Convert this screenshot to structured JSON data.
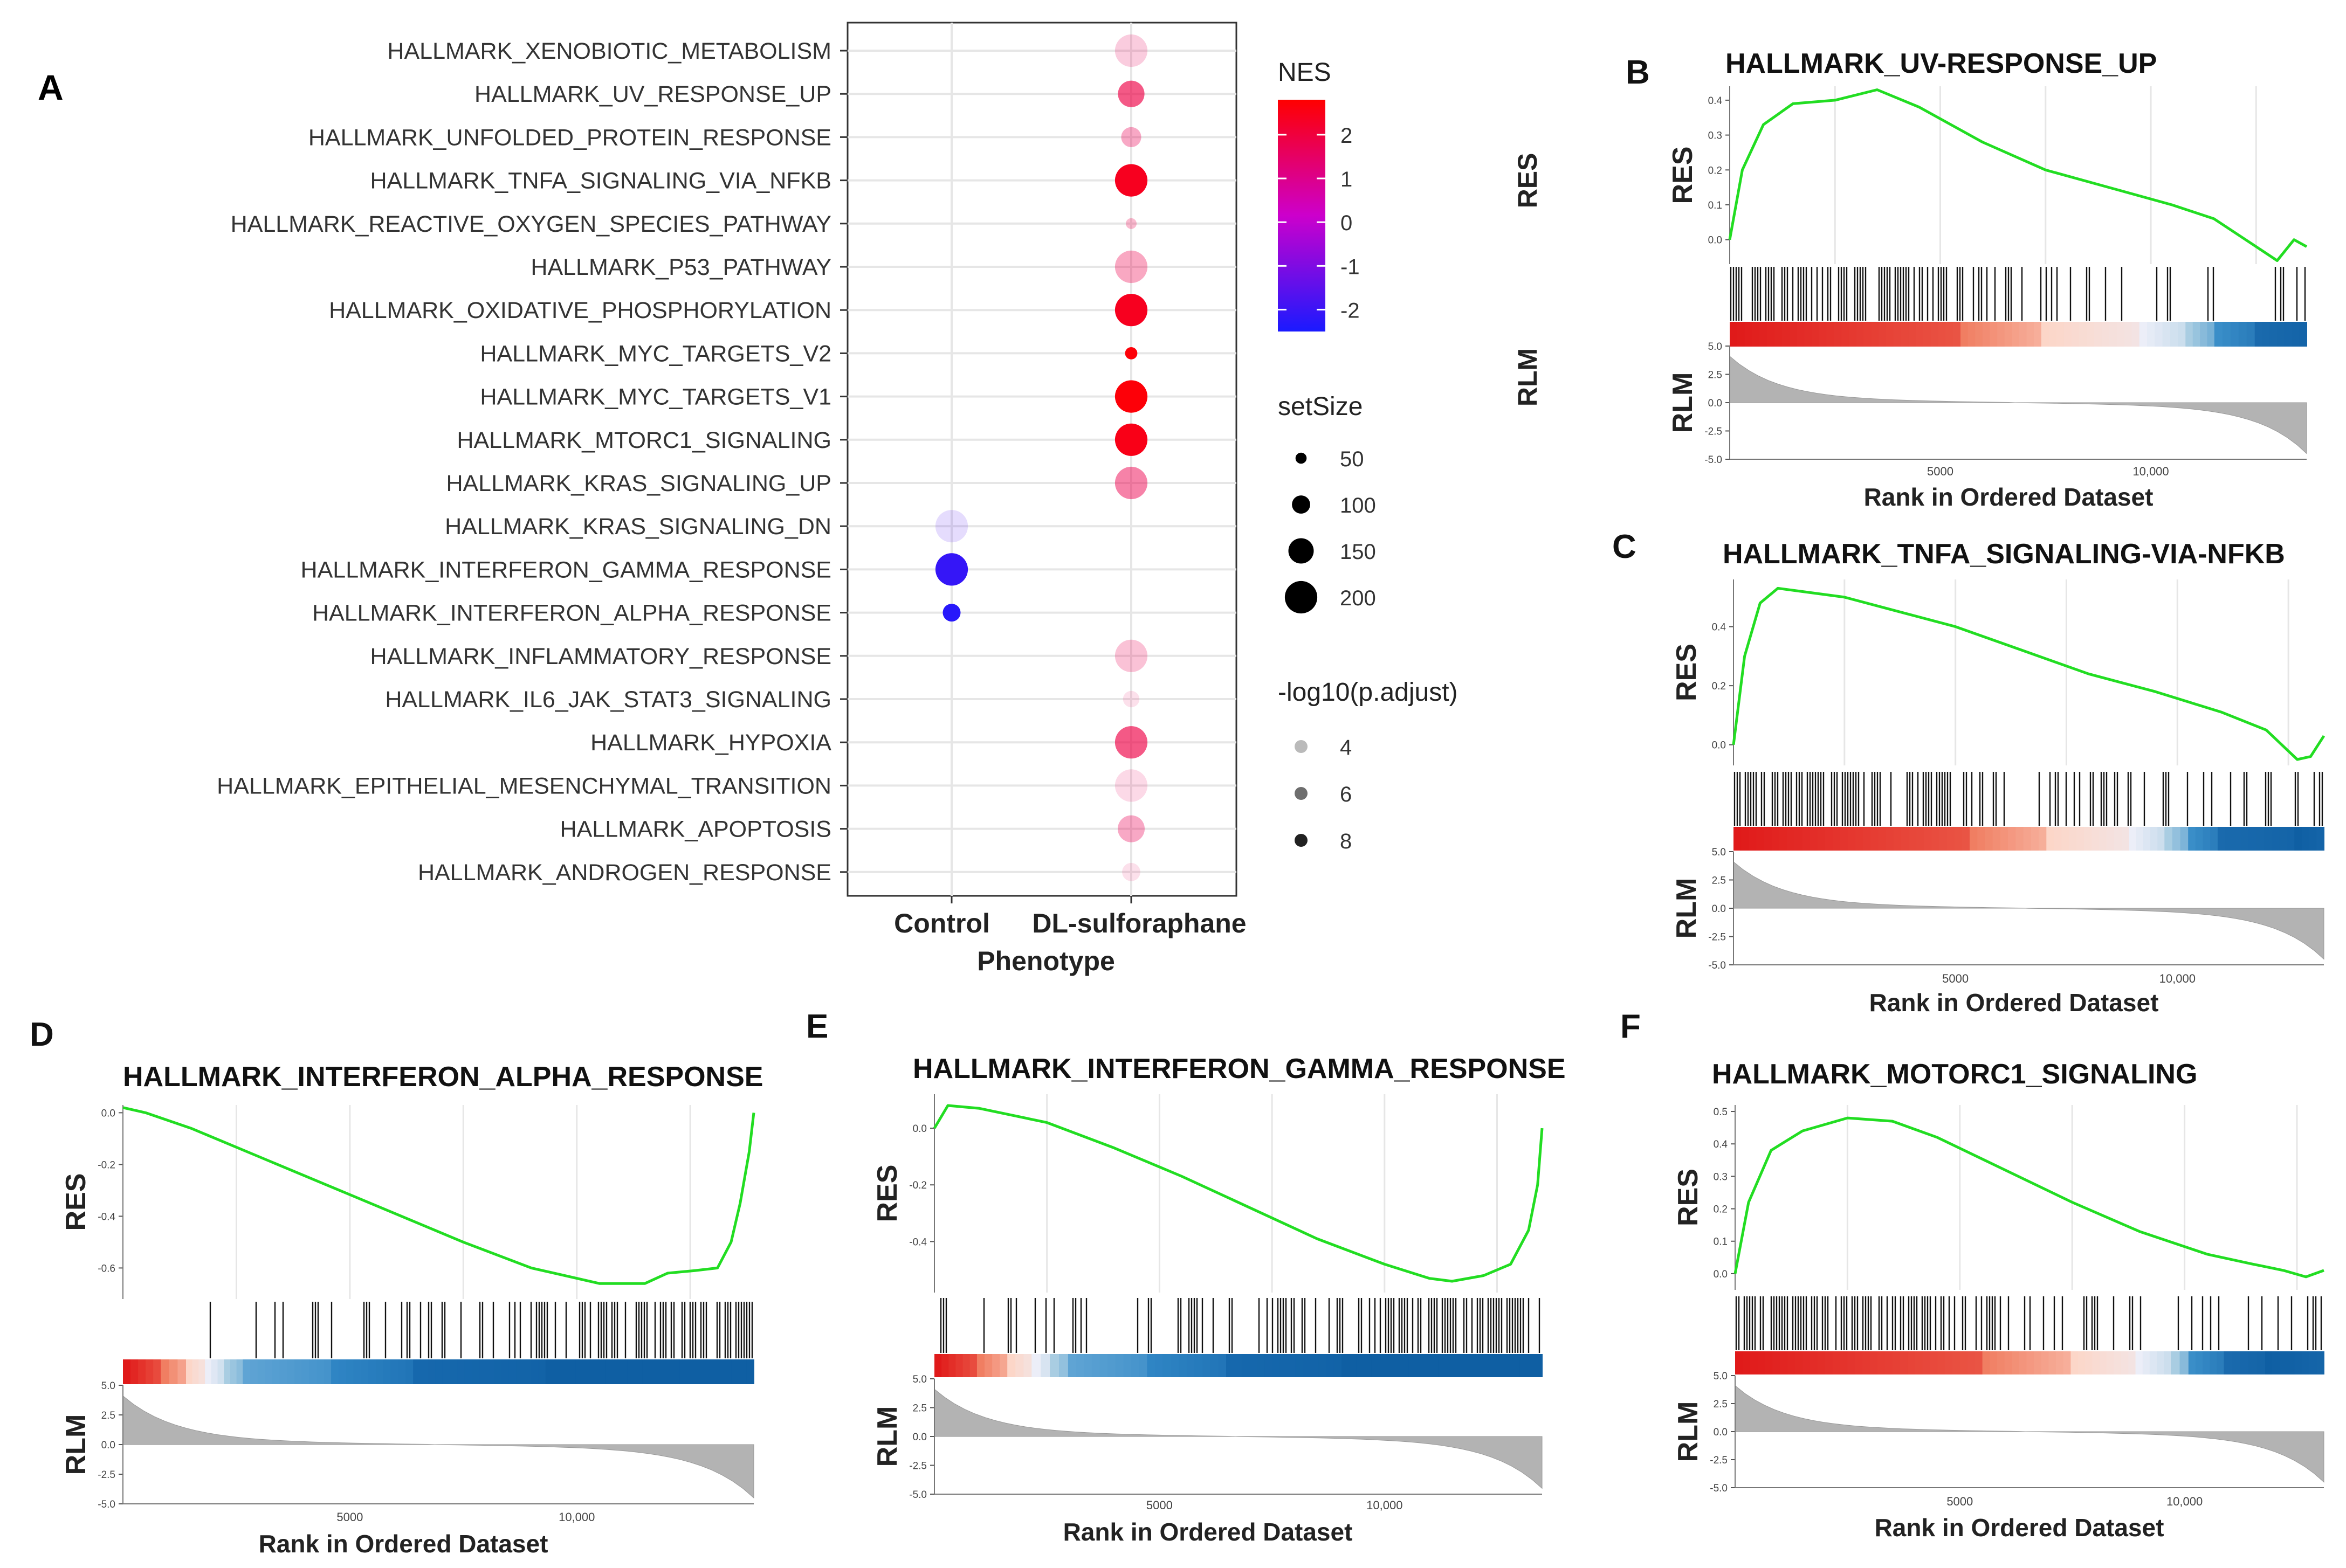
{
  "figure": {
    "colors": {
      "high": "#ff0000",
      "mid": "#cc00cc",
      "low": "#1a1aff",
      "grid": "#e6e6e6",
      "curve": "#22dd22",
      "tail": "#b3b3b3"
    }
  },
  "chart_data": [
    {
      "panel": "A",
      "type": "scatter",
      "subtype": "dotplot",
      "xlabel": "Phenotype",
      "categories": [
        "Control",
        "DL-sulforaphane"
      ],
      "pathways": [
        "HALLMARK_XENOBIOTIC_METABOLISM",
        "HALLMARK_UV_RESPONSE_UP",
        "HALLMARK_UNFOLDED_PROTEIN_RESPONSE",
        "HALLMARK_TNFA_SIGNALING_VIA_NFKB",
        "HALLMARK_REACTIVE_OXYGEN_SPECIES_PATHWAY",
        "HALLMARK_P53_PATHWAY",
        "HALLMARK_OXIDATIVE_PHOSPHORYLATION",
        "HALLMARK_MYC_TARGETS_V2",
        "HALLMARK_MYC_TARGETS_V1",
        "HALLMARK_MTORC1_SIGNALING",
        "HALLMARK_KRAS_SIGNALING_UP",
        "HALLMARK_KRAS_SIGNALING_DN",
        "HALLMARK_INTERFERON_GAMMA_RESPONSE",
        "HALLMARK_INTERFERON_ALPHA_RESPONSE",
        "HALLMARK_INFLAMMATORY_RESPONSE",
        "HALLMARK_IL6_JAK_STAT3_SIGNALING",
        "HALLMARK_HYPOXIA",
        "HALLMARK_EPITHELIAL_MESENCHYMAL_TRANSITION",
        "HALLMARK_APOPTOSIS",
        "HALLMARK_ANDROGEN_RESPONSE"
      ],
      "points": [
        {
          "pathway": "HALLMARK_XENOBIOTIC_METABOLISM",
          "group": "DL-sulforaphane",
          "NES": 1.6,
          "setSize": 200,
          "neglog10padj": 3.5
        },
        {
          "pathway": "HALLMARK_UV_RESPONSE_UP",
          "group": "DL-sulforaphane",
          "NES": 1.9,
          "setSize": 158,
          "neglog10padj": 6.5
        },
        {
          "pathway": "HALLMARK_UNFOLDED_PROTEIN_RESPONSE",
          "group": "DL-sulforaphane",
          "NES": 1.7,
          "setSize": 113,
          "neglog10padj": 4.5
        },
        {
          "pathway": "HALLMARK_TNFA_SIGNALING_VIA_NFKB",
          "group": "DL-sulforaphane",
          "NES": 2.4,
          "setSize": 200,
          "neglog10padj": 9.0
        },
        {
          "pathway": "HALLMARK_REACTIVE_OXYGEN_SPECIES_PATHWAY",
          "group": "DL-sulforaphane",
          "NES": 1.8,
          "setSize": 48,
          "neglog10padj": 4.0
        },
        {
          "pathway": "HALLMARK_P53_PATHWAY",
          "group": "DL-sulforaphane",
          "NES": 1.8,
          "setSize": 200,
          "neglog10padj": 4.5
        },
        {
          "pathway": "HALLMARK_OXIDATIVE_PHOSPHORYLATION",
          "group": "DL-sulforaphane",
          "NES": 2.4,
          "setSize": 200,
          "neglog10padj": 9.0
        },
        {
          "pathway": "HALLMARK_MYC_TARGETS_V2",
          "group": "DL-sulforaphane",
          "NES": 2.7,
          "setSize": 58,
          "neglog10padj": 9.0
        },
        {
          "pathway": "HALLMARK_MYC_TARGETS_V1",
          "group": "DL-sulforaphane",
          "NES": 2.7,
          "setSize": 200,
          "neglog10padj": 9.0
        },
        {
          "pathway": "HALLMARK_MTORC1_SIGNALING",
          "group": "DL-sulforaphane",
          "NES": 2.5,
          "setSize": 200,
          "neglog10padj": 9.0
        },
        {
          "pathway": "HALLMARK_KRAS_SIGNALING_UP",
          "group": "DL-sulforaphane",
          "NES": 1.8,
          "setSize": 200,
          "neglog10padj": 5.5
        },
        {
          "pathway": "HALLMARK_KRAS_SIGNALING_DN",
          "group": "Control",
          "NES": -1.7,
          "setSize": 200,
          "neglog10padj": 3.2
        },
        {
          "pathway": "HALLMARK_INTERFERON_GAMMA_RESPONSE",
          "group": "Control",
          "NES": -2.1,
          "setSize": 200,
          "neglog10padj": 9.0
        },
        {
          "pathway": "HALLMARK_INTERFERON_ALPHA_RESPONSE",
          "group": "Control",
          "NES": -2.3,
          "setSize": 97,
          "neglog10padj": 9.0
        },
        {
          "pathway": "HALLMARK_INFLAMMATORY_RESPONSE",
          "group": "DL-sulforaphane",
          "NES": 1.7,
          "setSize": 200,
          "neglog10padj": 3.8
        },
        {
          "pathway": "HALLMARK_IL6_JAK_STAT3_SIGNALING",
          "group": "DL-sulforaphane",
          "NES": 1.6,
          "setSize": 87,
          "neglog10padj": 3.0
        },
        {
          "pathway": "HALLMARK_HYPOXIA",
          "group": "DL-sulforaphane",
          "NES": 1.9,
          "setSize": 200,
          "neglog10padj": 6.5
        },
        {
          "pathway": "HALLMARK_EPITHELIAL_MESENCHYMAL_TRANSITION",
          "group": "DL-sulforaphane",
          "NES": 1.6,
          "setSize": 200,
          "neglog10padj": 3.2
        },
        {
          "pathway": "HALLMARK_APOPTOSIS",
          "group": "DL-sulforaphane",
          "NES": 1.7,
          "setSize": 161,
          "neglog10padj": 4.5
        },
        {
          "pathway": "HALLMARK_ANDROGEN_RESPONSE",
          "group": "DL-sulforaphane",
          "NES": 1.6,
          "setSize": 100,
          "neglog10padj": 3.0
        }
      ],
      "legend": {
        "nes_title": "NES",
        "nes_ticks": [
          "2",
          "1",
          "0",
          "-1",
          "-2"
        ],
        "nes_range": [
          -2.5,
          2.8
        ],
        "size_title": "setSize",
        "size_values": [
          50,
          100,
          150,
          200
        ],
        "size_labels": [
          "50",
          "100",
          "150",
          "200"
        ],
        "alpha_title": "-log10(p.adjust)",
        "alpha_values": [
          4,
          6,
          8
        ],
        "alpha_labels": [
          "4",
          "6",
          "8"
        ],
        "side_labels": [
          "RES",
          "RLM"
        ]
      }
    },
    {
      "panel": "B",
      "type": "line",
      "title": "HALLMARK_UV-RESPONSE_UP",
      "ylabel_top": "RES",
      "ylabel_bottom": "RLM",
      "xlabel": "Rank in Ordered Dataset",
      "res_ticks": [
        "0.4",
        "0.3",
        "0.2",
        "0.1",
        "0.0"
      ],
      "res_values": [
        0.4,
        0.3,
        0.2,
        0.1,
        0.0
      ],
      "res_range": [
        -0.07,
        0.44
      ],
      "rlm_ticks": [
        "5.0",
        "2.5",
        "0.0",
        "-2.5",
        "-5.0"
      ],
      "rlm_values": [
        5,
        2.5,
        0,
        -2.5,
        -5
      ],
      "rlm_range": [
        -5,
        5
      ],
      "x_ticks": [
        "5000",
        "10,000"
      ],
      "x_tick_values": [
        5000,
        10000
      ],
      "x_range": [
        0,
        13700
      ],
      "curve_x": [
        0,
        300,
        800,
        1500,
        2500,
        3500,
        4500,
        6000,
        7500,
        9000,
        10500,
        11500,
        12500,
        13000,
        13400,
        13700
      ],
      "curve_y": [
        0.0,
        0.2,
        0.33,
        0.39,
        0.4,
        0.43,
        0.38,
        0.28,
        0.2,
        0.15,
        0.1,
        0.06,
        -0.02,
        -0.06,
        0.0,
        -0.02
      ],
      "hit_density": [
        0.95,
        0.9,
        0.9,
        0.85,
        0.85,
        0.8,
        0.7,
        0.6,
        0.45,
        0.35,
        0.25,
        0.15,
        0.1,
        0.1,
        0.2,
        0.35
      ],
      "heat_bands": [
        0.4,
        0.14,
        0.17,
        0.08,
        0.05,
        0.07,
        0.09
      ],
      "heat_seed": 3,
      "neg_bias": 0
    },
    {
      "panel": "C",
      "type": "line",
      "title": "HALLMARK_TNFA_SIGNALING-VIA-NFKB",
      "ylabel_top": "RES",
      "ylabel_bottom": "RLM",
      "xlabel": "Rank in Ordered Dataset",
      "res_ticks": [
        "0.4",
        "0.2",
        "0.0"
      ],
      "res_values": [
        0.4,
        0.2,
        0.0
      ],
      "res_range": [
        -0.07,
        0.56
      ],
      "rlm_ticks": [
        "5.0",
        "2.5",
        "0.0",
        "-2.5",
        "-5.0"
      ],
      "rlm_values": [
        5,
        2.5,
        0,
        -2.5,
        -5
      ],
      "rlm_range": [
        -5,
        5
      ],
      "x_ticks": [
        "5000",
        "10,000"
      ],
      "x_tick_values": [
        5000,
        10000
      ],
      "x_range": [
        0,
        13300
      ],
      "curve_x": [
        0,
        250,
        600,
        1000,
        1500,
        2500,
        3500,
        5000,
        6500,
        8000,
        9500,
        11000,
        12000,
        12700,
        13000,
        13300
      ],
      "curve_y": [
        0.0,
        0.3,
        0.48,
        0.53,
        0.52,
        0.5,
        0.46,
        0.4,
        0.32,
        0.24,
        0.18,
        0.11,
        0.05,
        -0.05,
        -0.04,
        0.03
      ],
      "hit_density": [
        0.95,
        0.9,
        0.85,
        0.85,
        0.75,
        0.65,
        0.6,
        0.55,
        0.5,
        0.5,
        0.45,
        0.4,
        0.3,
        0.3,
        0.35,
        0.5
      ],
      "heat_bands": [
        0.4,
        0.13,
        0.14,
        0.06,
        0.04,
        0.05,
        0.13,
        0.05
      ],
      "heat_seed": 7,
      "neg_bias": 0
    },
    {
      "panel": "D",
      "type": "line",
      "title": "HALLMARK_INTERFERON_ALPHA_RESPONSE",
      "ylabel_top": "RES",
      "ylabel_bottom": "RLM",
      "xlabel": "Rank in Ordered Dataset",
      "res_ticks": [
        "0.0",
        "-0.2",
        "-0.4",
        "-0.6"
      ],
      "res_values": [
        0.0,
        -0.2,
        -0.4,
        -0.6
      ],
      "res_range": [
        -0.72,
        0.03
      ],
      "rlm_ticks": [
        "5.0",
        "2.5",
        "0.0",
        "-2.5",
        "-5.0"
      ],
      "rlm_values": [
        5,
        2.5,
        0,
        -2.5,
        -5
      ],
      "rlm_range": [
        -5,
        5
      ],
      "x_ticks": [
        "5000",
        "10,000"
      ],
      "x_tick_values": [
        5000,
        10000
      ],
      "x_range": [
        0,
        13900
      ],
      "curve_x": [
        0,
        500,
        1500,
        3000,
        4500,
        6000,
        7500,
        9000,
        10500,
        11500,
        12000,
        12600,
        13100,
        13400,
        13600,
        13800,
        13900
      ],
      "curve_y": [
        0.02,
        0.0,
        -0.06,
        -0.17,
        -0.28,
        -0.39,
        -0.5,
        -0.6,
        -0.66,
        -0.66,
        -0.62,
        -0.61,
        -0.6,
        -0.5,
        -0.35,
        -0.15,
        0.0
      ],
      "hit_density": [
        0.05,
        0.1,
        0.1,
        0.15,
        0.15,
        0.2,
        0.3,
        0.45,
        0.55,
        0.6,
        0.65,
        0.7,
        0.8,
        0.85,
        0.9,
        0.97
      ],
      "heat_bands": [
        0.06,
        0.04,
        0.03,
        0.03,
        0.03,
        0.14,
        0.13,
        0.21,
        0.33
      ],
      "heat_seed": 11,
      "neg_bias": 1
    },
    {
      "panel": "E",
      "type": "line",
      "title": "HALLMARK_INTERFERON_GAMMA_RESPONSE",
      "ylabel_top": "RES",
      "ylabel_bottom": "RLM",
      "xlabel": "Rank in Ordered Dataset",
      "res_ticks": [
        "0.0",
        "-0.2",
        "-0.4"
      ],
      "res_values": [
        0.0,
        -0.2,
        -0.4
      ],
      "res_range": [
        -0.58,
        0.12
      ],
      "rlm_ticks": [
        "5.0",
        "2.5",
        "0.0",
        "-2.5",
        "-5.0"
      ],
      "rlm_values": [
        5,
        2.5,
        0,
        -2.5,
        -5
      ],
      "rlm_range": [
        -5,
        5
      ],
      "x_ticks": [
        "5000",
        "10,000"
      ],
      "x_tick_values": [
        5000,
        10000
      ],
      "x_range": [
        0,
        13500
      ],
      "curve_x": [
        0,
        300,
        1000,
        2500,
        4000,
        5500,
        7000,
        8500,
        10000,
        11000,
        11500,
        12200,
        12800,
        13200,
        13400,
        13500
      ],
      "curve_y": [
        0.0,
        0.08,
        0.07,
        0.02,
        -0.07,
        -0.17,
        -0.28,
        -0.39,
        -0.48,
        -0.53,
        -0.54,
        -0.52,
        -0.48,
        -0.36,
        -0.2,
        0.0
      ],
      "hit_density": [
        0.35,
        0.3,
        0.35,
        0.3,
        0.25,
        0.3,
        0.4,
        0.5,
        0.6,
        0.6,
        0.65,
        0.7,
        0.75,
        0.85,
        0.9,
        0.97
      ],
      "heat_bands": [
        0.07,
        0.05,
        0.04,
        0.03,
        0.03,
        0.13,
        0.13,
        0.19,
        0.33
      ],
      "heat_seed": 19,
      "neg_bias": 1
    },
    {
      "panel": "F",
      "type": "line",
      "title": "HALLMARK_MOTORC1_SIGNALING",
      "ylabel_top": "RES",
      "ylabel_bottom": "RLM",
      "xlabel": "Rank in Ordered Dataset",
      "res_ticks": [
        "0.5",
        "0.4",
        "0.3",
        "0.2",
        "0.1",
        "0.0"
      ],
      "res_values": [
        0.5,
        0.4,
        0.3,
        0.2,
        0.1,
        0.0
      ],
      "res_range": [
        -0.05,
        0.52
      ],
      "rlm_ticks": [
        "5.0",
        "2.5",
        "0.0",
        "-2.5",
        "-5.0"
      ],
      "rlm_values": [
        5,
        2.5,
        0,
        -2.5,
        -5
      ],
      "rlm_range": [
        -5,
        5
      ],
      "x_ticks": [
        "5000",
        "10,000"
      ],
      "x_tick_values": [
        5000,
        10000
      ],
      "x_range": [
        0,
        13100
      ],
      "curve_x": [
        0,
        300,
        800,
        1500,
        2500,
        3500,
        4500,
        6000,
        7500,
        9000,
        10500,
        11500,
        12200,
        12700,
        13100
      ],
      "curve_y": [
        0.0,
        0.22,
        0.38,
        0.44,
        0.48,
        0.47,
        0.42,
        0.32,
        0.22,
        0.13,
        0.06,
        0.03,
        0.01,
        -0.01,
        0.01
      ],
      "hit_density": [
        0.97,
        0.95,
        0.9,
        0.85,
        0.85,
        0.8,
        0.7,
        0.6,
        0.5,
        0.45,
        0.35,
        0.3,
        0.25,
        0.2,
        0.25
      ],
      "heat_bands": [
        0.42,
        0.15,
        0.11,
        0.06,
        0.03,
        0.06,
        0.07,
        0.1
      ],
      "heat_seed": 23,
      "neg_bias": 0
    }
  ]
}
